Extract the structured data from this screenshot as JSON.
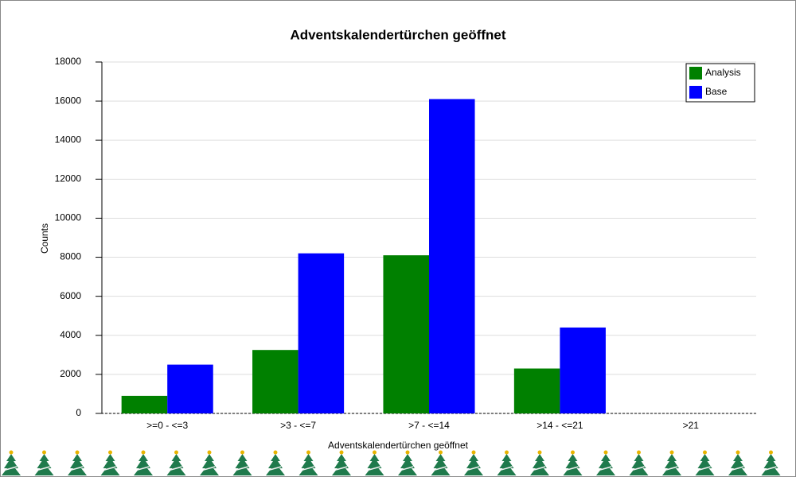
{
  "chart_data": {
    "type": "bar",
    "title": "Adventskalendertürchen geöffnet",
    "x_label": "Adventskalendertürchen geöffnet",
    "y_label": "Counts",
    "categories": [
      ">=0 - <=3",
      ">3 - <=7",
      ">7 - <=14",
      ">14 - <=21",
      ">21"
    ],
    "series": [
      {
        "name": "Analysis",
        "color": "#008000",
        "values": [
          900,
          3250,
          8100,
          2300,
          0
        ]
      },
      {
        "name": "Base",
        "color": "#0000ff",
        "values": [
          2500,
          8200,
          16100,
          4400,
          0
        ]
      }
    ],
    "ylim": [
      0,
      18000
    ],
    "yticks": [
      0,
      2000,
      4000,
      6000,
      8000,
      10000,
      12000,
      14000,
      16000,
      18000
    ],
    "grid": true,
    "legend": "upper right"
  }
}
